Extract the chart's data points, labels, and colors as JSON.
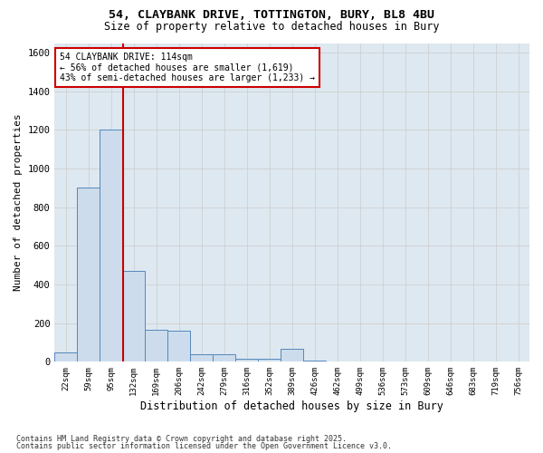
{
  "title_line1": "54, CLAYBANK DRIVE, TOTTINGTON, BURY, BL8 4BU",
  "title_line2": "Size of property relative to detached houses in Bury",
  "xlabel": "Distribution of detached houses by size in Bury",
  "ylabel": "Number of detached properties",
  "categories": [
    "22sqm",
    "59sqm",
    "95sqm",
    "132sqm",
    "169sqm",
    "206sqm",
    "242sqm",
    "279sqm",
    "316sqm",
    "352sqm",
    "389sqm",
    "426sqm",
    "462sqm",
    "499sqm",
    "536sqm",
    "573sqm",
    "609sqm",
    "646sqm",
    "683sqm",
    "719sqm",
    "756sqm"
  ],
  "values": [
    50,
    900,
    1200,
    470,
    165,
    160,
    40,
    40,
    15,
    15,
    65,
    8,
    0,
    0,
    0,
    0,
    0,
    0,
    0,
    0,
    0
  ],
  "bar_color": "#ccdcec",
  "bar_edge_color": "#5588bb",
  "grid_color": "#cccccc",
  "background_color": "#dde8f0",
  "vline_color": "#cc0000",
  "vline_pos": 2.51,
  "annotation_text": "54 CLAYBANK DRIVE: 114sqm\n← 56% of detached houses are smaller (1,619)\n43% of semi-detached houses are larger (1,233) →",
  "annotation_box_color": "#cc0000",
  "ylim": [
    0,
    1650
  ],
  "yticks": [
    0,
    200,
    400,
    600,
    800,
    1000,
    1200,
    1400,
    1600
  ],
  "footer_line1": "Contains HM Land Registry data © Crown copyright and database right 2025.",
  "footer_line2": "Contains public sector information licensed under the Open Government Licence v3.0."
}
